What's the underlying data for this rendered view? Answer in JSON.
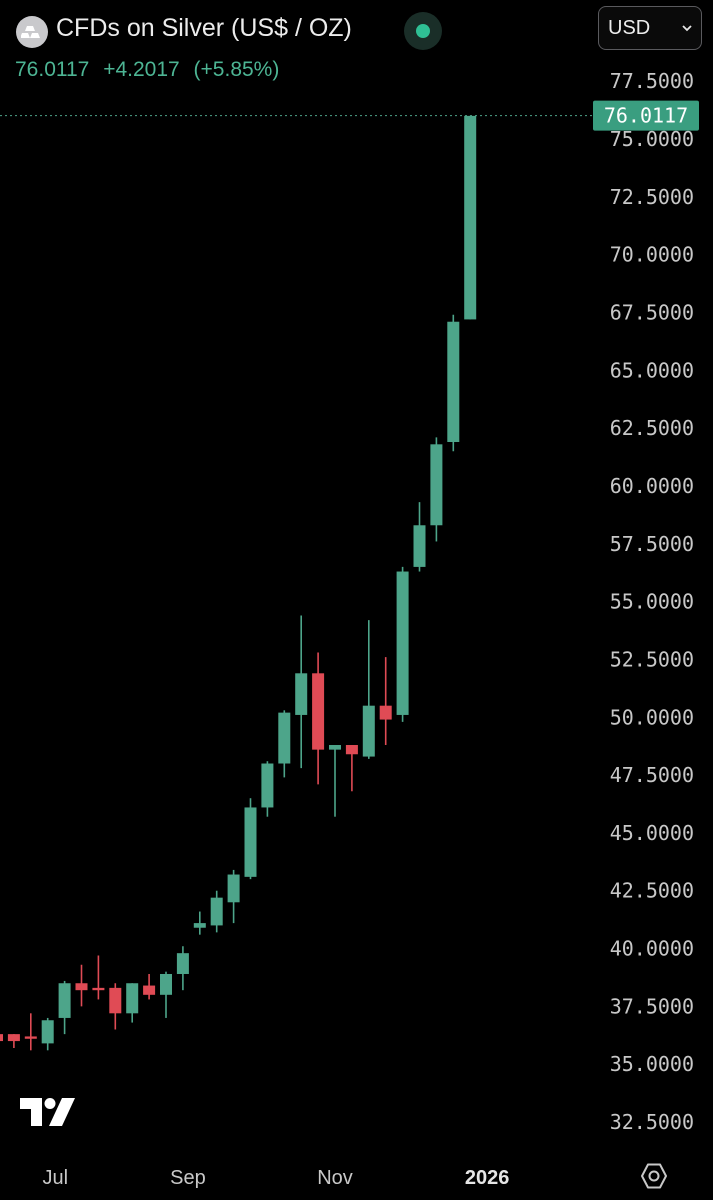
{
  "header": {
    "title": "CFDs on Silver (US$ / OZ)",
    "currency": "USD",
    "last_price": "76.0117",
    "change": "+4.2017",
    "change_pct": "(+5.85%)",
    "logo_icon": "silver-bars-icon",
    "status_color": "#2fbf94"
  },
  "colors": {
    "up": "#4da58a",
    "down": "#e04b55",
    "background": "#000000",
    "price_tag": "#3a9e80"
  },
  "chart_data": {
    "type": "candlestick",
    "ylim": [
      31.5,
      79.0
    ],
    "y_ticks": [
      "32.5000",
      "35.0000",
      "37.5000",
      "40.0000",
      "42.5000",
      "45.0000",
      "47.5000",
      "50.0000",
      "52.5000",
      "55.0000",
      "57.5000",
      "60.0000",
      "62.5000",
      "65.0000",
      "67.5000",
      "70.0000",
      "72.5000",
      "75.0000",
      "77.5000"
    ],
    "x_labels": [
      {
        "label": "Jul",
        "index": 3.45,
        "bold": false
      },
      {
        "label": "Sep",
        "index": 11.3,
        "bold": false
      },
      {
        "label": "Nov",
        "index": 20.0,
        "bold": false
      },
      {
        "label": "2026",
        "index": 29.0,
        "bold": true
      }
    ],
    "last_price": 76.0117,
    "last_price_label": "76.0117",
    "candles": [
      {
        "o": 36.3,
        "h": 36.5,
        "l": 35.8,
        "c": 36.0
      },
      {
        "o": 36.3,
        "h": 36.3,
        "l": 35.7,
        "c": 36.0
      },
      {
        "o": 36.2,
        "h": 37.2,
        "l": 35.6,
        "c": 36.1
      },
      {
        "o": 35.9,
        "h": 37.0,
        "l": 35.6,
        "c": 36.9
      },
      {
        "o": 37.0,
        "h": 38.6,
        "l": 36.3,
        "c": 38.5
      },
      {
        "o": 38.5,
        "h": 39.3,
        "l": 37.5,
        "c": 38.2
      },
      {
        "o": 38.3,
        "h": 39.7,
        "l": 37.8,
        "c": 38.2
      },
      {
        "o": 38.3,
        "h": 38.5,
        "l": 36.5,
        "c": 37.2
      },
      {
        "o": 37.2,
        "h": 38.5,
        "l": 36.8,
        "c": 38.5
      },
      {
        "o": 38.4,
        "h": 38.9,
        "l": 37.8,
        "c": 38.0
      },
      {
        "o": 38.0,
        "h": 39.0,
        "l": 37.0,
        "c": 38.9
      },
      {
        "o": 38.9,
        "h": 40.1,
        "l": 38.2,
        "c": 39.8
      },
      {
        "o": 40.9,
        "h": 41.6,
        "l": 40.6,
        "c": 41.1
      },
      {
        "o": 41.0,
        "h": 42.5,
        "l": 40.7,
        "c": 42.2
      },
      {
        "o": 42.0,
        "h": 43.4,
        "l": 41.1,
        "c": 43.2
      },
      {
        "o": 43.1,
        "h": 46.5,
        "l": 43.0,
        "c": 46.1
      },
      {
        "o": 46.1,
        "h": 48.1,
        "l": 45.7,
        "c": 48.0
      },
      {
        "o": 48.0,
        "h": 50.3,
        "l": 47.4,
        "c": 50.2
      },
      {
        "o": 50.1,
        "h": 54.4,
        "l": 47.8,
        "c": 51.9
      },
      {
        "o": 51.9,
        "h": 52.8,
        "l": 47.1,
        "c": 48.6
      },
      {
        "o": 48.6,
        "h": 48.7,
        "l": 45.7,
        "c": 48.8
      },
      {
        "o": 48.8,
        "h": 48.8,
        "l": 46.8,
        "c": 48.4
      },
      {
        "o": 48.3,
        "h": 54.2,
        "l": 48.2,
        "c": 50.5
      },
      {
        "o": 50.5,
        "h": 52.6,
        "l": 48.8,
        "c": 49.9
      },
      {
        "o": 50.1,
        "h": 56.5,
        "l": 49.8,
        "c": 56.3
      },
      {
        "o": 56.5,
        "h": 59.3,
        "l": 56.3,
        "c": 58.3
      },
      {
        "o": 58.3,
        "h": 62.1,
        "l": 57.6,
        "c": 61.8
      },
      {
        "o": 61.9,
        "h": 67.4,
        "l": 61.5,
        "c": 67.1
      },
      {
        "o": 67.2,
        "h": 76.0,
        "l": 67.2,
        "c": 76.0
      }
    ]
  }
}
